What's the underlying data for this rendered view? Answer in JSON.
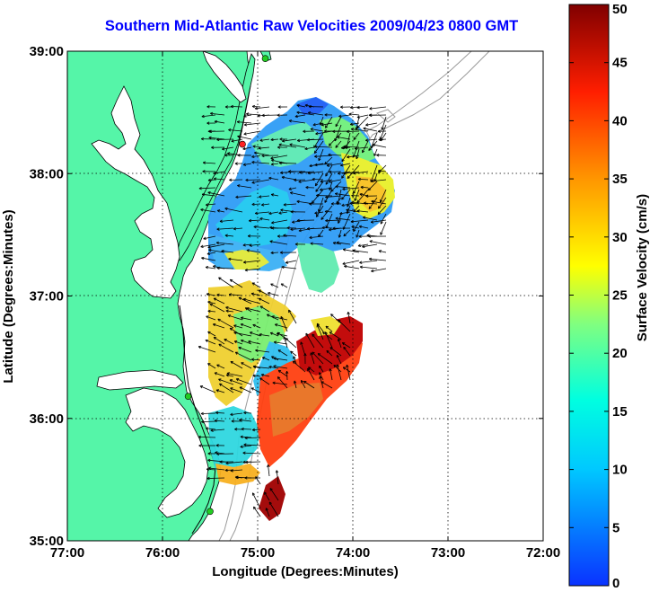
{
  "title": "Southern Mid-Atlantic Raw Velocities 2009/04/23 0800 GMT",
  "map": {
    "xlabel": "Longitude (Degrees:Minutes)",
    "ylabel": "Latitude (Degrees:Minutes)",
    "lon_range": [
      -77,
      -72
    ],
    "lat_range": [
      35,
      39
    ],
    "x_ticks": [
      "77:00",
      "76:00",
      "75:00",
      "74:00",
      "73:00",
      "72:00"
    ],
    "y_ticks": [
      "35:00",
      "36:00",
      "37:00",
      "38:00",
      "39:00"
    ],
    "grid": "dotted",
    "land_color": "#55f5a8",
    "coast_color": "#000000",
    "bathymetry_color": "#9a9a9a",
    "station_markers": [
      {
        "lon": -74.92,
        "lat": 38.94,
        "color": "#22cc22"
      },
      {
        "lon": -75.16,
        "lat": 38.24,
        "color": "#ff2222"
      },
      {
        "lon": -75.73,
        "lat": 36.18,
        "color": "#22cc22"
      },
      {
        "lon": -75.5,
        "lat": 35.24,
        "color": "#22cc22"
      }
    ]
  },
  "colorbar": {
    "label": "Surface Velocity (cm/s)",
    "min": 0,
    "max": 50,
    "ticks": [
      "0",
      "5",
      "10",
      "15",
      "20",
      "25",
      "30",
      "35",
      "40",
      "45",
      "50"
    ],
    "colormap": "jet"
  }
}
